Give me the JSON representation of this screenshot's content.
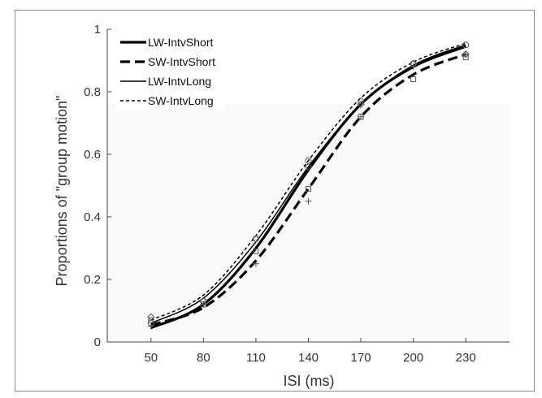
{
  "chart_data": {
    "type": "line",
    "xlabel": "ISI (ms)",
    "ylabel": "Proportions of \"group motion\"",
    "xticks": [
      50,
      80,
      110,
      140,
      170,
      200,
      230
    ],
    "yticks": [
      0,
      0.2,
      0.4,
      0.6,
      0.8,
      1
    ],
    "xlim": [
      25,
      255
    ],
    "ylim": [
      0,
      1
    ],
    "grid": false,
    "legend_position": "top-left",
    "series": [
      {
        "name": "LW-IntvShort",
        "line_style": "thick-solid",
        "marker": "circle",
        "x": [
          50,
          80,
          110,
          140,
          170,
          200,
          230
        ],
        "curve": [
          0.045,
          0.12,
          0.3,
          0.55,
          0.76,
          0.88,
          0.945
        ],
        "points": [
          0.06,
          0.13,
          0.33,
          0.58,
          0.77,
          0.89,
          0.95
        ]
      },
      {
        "name": "SW-IntvShort",
        "line_style": "thick-dashed",
        "marker": "square",
        "x": [
          50,
          80,
          110,
          140,
          170,
          200,
          230
        ],
        "curve": [
          0.055,
          0.11,
          0.26,
          0.49,
          0.72,
          0.855,
          0.92
        ],
        "points": [
          0.07,
          0.12,
          0.29,
          0.49,
          0.72,
          0.84,
          0.91
        ]
      },
      {
        "name": "LW-IntvLong",
        "line_style": "thin-solid",
        "marker": "plus",
        "x": [
          50,
          80,
          110,
          140,
          170,
          200,
          230
        ],
        "curve": [
          0.06,
          0.14,
          0.32,
          0.56,
          0.76,
          0.885,
          0.95
        ],
        "points": [
          0.05,
          0.12,
          0.25,
          0.45,
          0.72,
          0.88,
          0.92
        ]
      },
      {
        "name": "SW-IntvLong",
        "line_style": "thin-dotted",
        "marker": "diamond",
        "x": [
          50,
          80,
          110,
          140,
          170,
          200,
          230
        ],
        "curve": [
          0.07,
          0.15,
          0.34,
          0.58,
          0.78,
          0.895,
          0.955
        ],
        "points": [
          0.08,
          0.13,
          0.33,
          0.56,
          0.76,
          0.89,
          0.92
        ]
      }
    ]
  }
}
